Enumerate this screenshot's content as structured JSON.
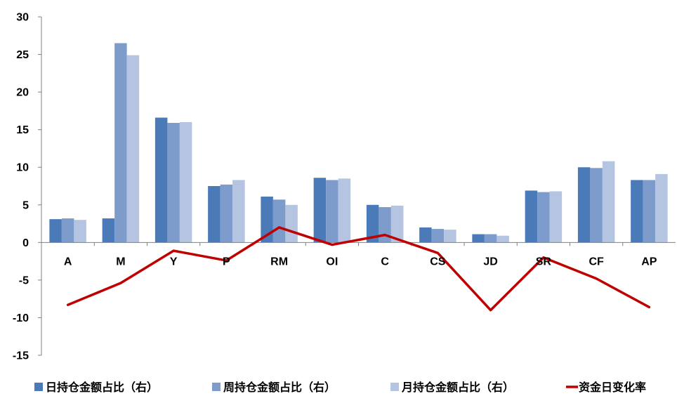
{
  "chart_data": {
    "type": "bar",
    "categories": [
      "A",
      "M",
      "Y",
      "P",
      "RM",
      "OI",
      "C",
      "CS",
      "JD",
      "SR",
      "CF",
      "AP"
    ],
    "ylim": [
      -15,
      30
    ],
    "yticks": [
      "30",
      "25",
      "20",
      "15",
      "10",
      "5",
      "0",
      "-5",
      "-10",
      "-15"
    ],
    "grid": false,
    "legend_position": "bottom",
    "series": [
      {
        "name": "日持仓金额占比（右）",
        "type": "bar",
        "color": "#4A7AB8",
        "values": [
          3.1,
          3.2,
          16.6,
          7.5,
          6.1,
          8.6,
          5.0,
          2.0,
          1.1,
          6.9,
          10.0,
          8.3
        ]
      },
      {
        "name": "周持仓金额占比（右）",
        "type": "bar",
        "color": "#7D9CCB",
        "values": [
          3.2,
          26.5,
          15.9,
          7.7,
          5.7,
          8.3,
          4.7,
          1.8,
          1.1,
          6.7,
          9.9,
          8.3
        ]
      },
      {
        "name": "月持仓金额占比（右）",
        "type": "bar",
        "color": "#B5C4E0",
        "values": [
          3.0,
          24.9,
          16.0,
          8.3,
          5.0,
          8.5,
          4.9,
          1.7,
          0.9,
          6.8,
          10.8,
          9.1
        ]
      },
      {
        "name": "资金日变化率",
        "type": "line",
        "color": "#C00000",
        "values": [
          -8.3,
          -5.4,
          -1.1,
          -2.4,
          2.0,
          -0.3,
          1.0,
          -1.4,
          -9.0,
          -2.0,
          -4.8,
          -8.6
        ]
      }
    ]
  }
}
